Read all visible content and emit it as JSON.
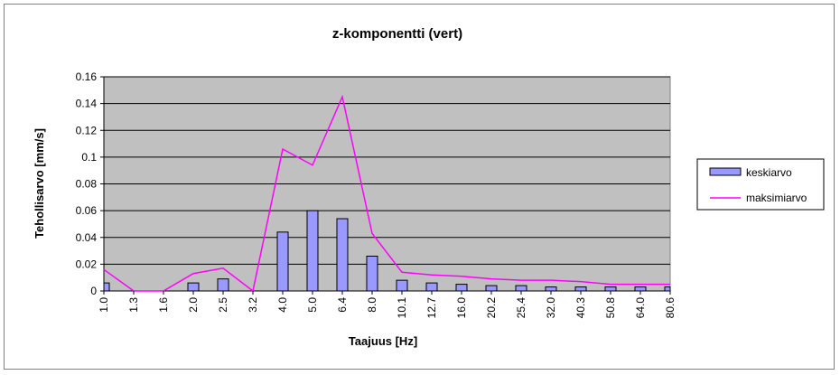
{
  "chart_data": {
    "type": "bar",
    "title": "z-komponentti (vert)",
    "xlabel": "Taajuus [Hz]",
    "ylabel": "Tehollisarvo [mm/s]",
    "ylim": [
      0,
      0.16
    ],
    "yticks": [
      "0",
      "0.02",
      "0.04",
      "0.06",
      "0.08",
      "0.1",
      "0.12",
      "0.14",
      "0.16"
    ],
    "categories": [
      "1.0",
      "1.3",
      "1.6",
      "2.0",
      "2.5",
      "3.2",
      "4.0",
      "5.0",
      "6.4",
      "8.0",
      "10.1",
      "12.7",
      "16.0",
      "20.2",
      "25.4",
      "32.0",
      "40.3",
      "50.8",
      "64.0",
      "80.6"
    ],
    "grid": true,
    "legend_position": "right",
    "series": [
      {
        "name": "keskiarvo",
        "type": "bar",
        "color": "#9999ff",
        "values": [
          0.006,
          0,
          0,
          0.006,
          0.009,
          0,
          0.044,
          0.06,
          0.054,
          0.026,
          0.008,
          0.006,
          0.005,
          0.004,
          0.004,
          0.003,
          0.003,
          0.003,
          0.003,
          0.003
        ]
      },
      {
        "name": "maksimiarvo",
        "type": "line",
        "color": "#ff00ff",
        "values": [
          0.016,
          0,
          0,
          0.013,
          0.017,
          0,
          0.106,
          0.094,
          0.145,
          0.043,
          0.014,
          0.012,
          0.011,
          0.009,
          0.008,
          0.008,
          0.007,
          0.005,
          0.005,
          0.005
        ]
      }
    ]
  },
  "colors": {
    "plot_background": "#c0c0c0",
    "bar_outline": "#000000"
  }
}
